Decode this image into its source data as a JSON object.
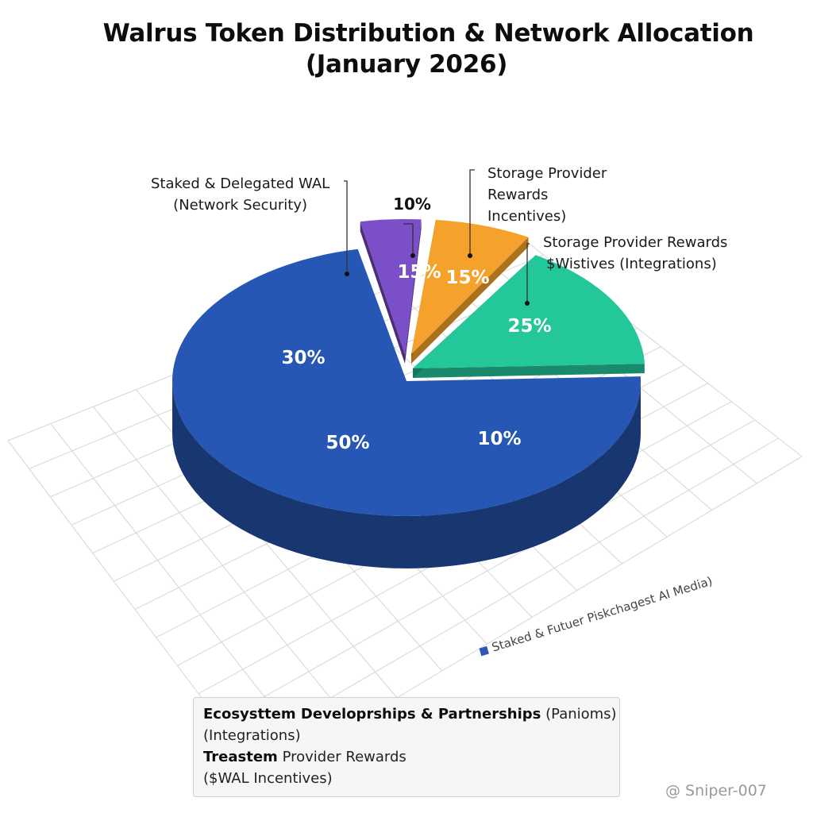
{
  "chart_data": {
    "type": "pie",
    "title": "Walrus Token Distribution & Network Allocation",
    "subtitle": "(January 2026)",
    "slices": [
      {
        "id": "main",
        "color": "#2757b5",
        "labels": [
          "30%",
          "50%",
          "10%"
        ]
      },
      {
        "id": "purple",
        "color": "#7b4fc8",
        "labels": [
          "15%"
        ]
      },
      {
        "id": "orange",
        "color": "#f5a22c",
        "labels": [
          "15%"
        ]
      },
      {
        "id": "green",
        "color": "#24c79a",
        "labels": [
          "25%"
        ]
      }
    ],
    "floating_label": "10%",
    "callouts": [
      {
        "lines": [
          "Staked & Delegated WAL",
          "(Network Security)"
        ]
      },
      {
        "lines": [
          "Storage Provider",
          "Rewards",
          "Incentives)"
        ]
      },
      {
        "lines": [
          "Storage Provider Rewards",
          "$Wistives (Integrations)"
        ]
      }
    ],
    "slanted_legend": "Staked & Futuer Piskchagest AI Media)",
    "legend_box": {
      "line1_bold": "Ecosysttem Developrships & Partnerships",
      "line1_rest": "(Panioms)",
      "line2": "(Integrations)",
      "line3_bold": "Treastem",
      "line3_rest": "Provider Rewards",
      "line4": "($WAL Incentives)"
    },
    "grid": true
  },
  "watermark": "@ Sniper-007"
}
